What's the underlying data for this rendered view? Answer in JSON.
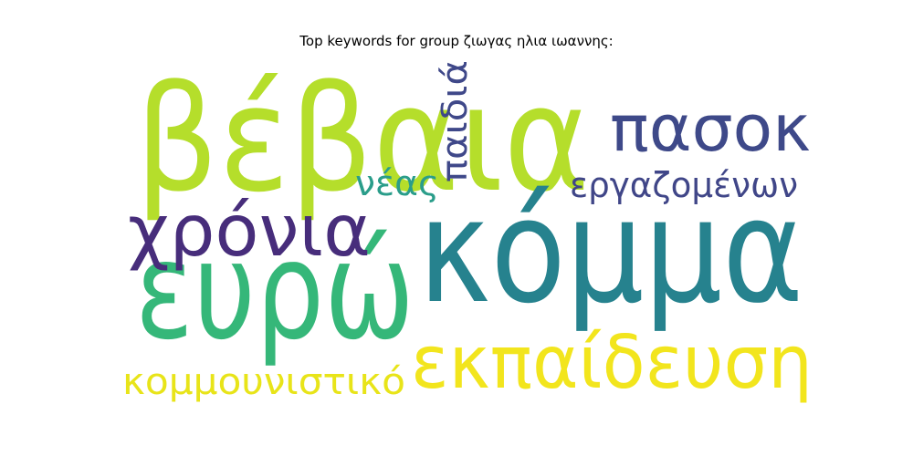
{
  "chart_data": {
    "type": "wordcloud",
    "title": "Top keywords for group ζιωγας ηλια ιωαννης:",
    "words": [
      {
        "text": "βέβαια",
        "weight": 1.0,
        "color": "#b5de2b"
      },
      {
        "text": "κόμμα",
        "weight": 0.98,
        "color": "#26828e"
      },
      {
        "text": "ευρώ",
        "weight": 0.9,
        "color": "#35b779"
      },
      {
        "text": "εκπαίδευση",
        "weight": 0.62,
        "color": "#f2e51d"
      },
      {
        "text": "χρόνια",
        "weight": 0.55,
        "color": "#472d7b"
      },
      {
        "text": "πασοκ",
        "weight": 0.5,
        "color": "#3e4989"
      },
      {
        "text": "κομμουνιστικό",
        "weight": 0.33,
        "color": "#e8e419"
      },
      {
        "text": "εργαζομένων",
        "weight": 0.3,
        "color": "#404688"
      },
      {
        "text": "παιδιά",
        "weight": 0.28,
        "color": "#3f4889"
      },
      {
        "text": "νέας",
        "weight": 0.26,
        "color": "#2a9d8a"
      }
    ]
  }
}
